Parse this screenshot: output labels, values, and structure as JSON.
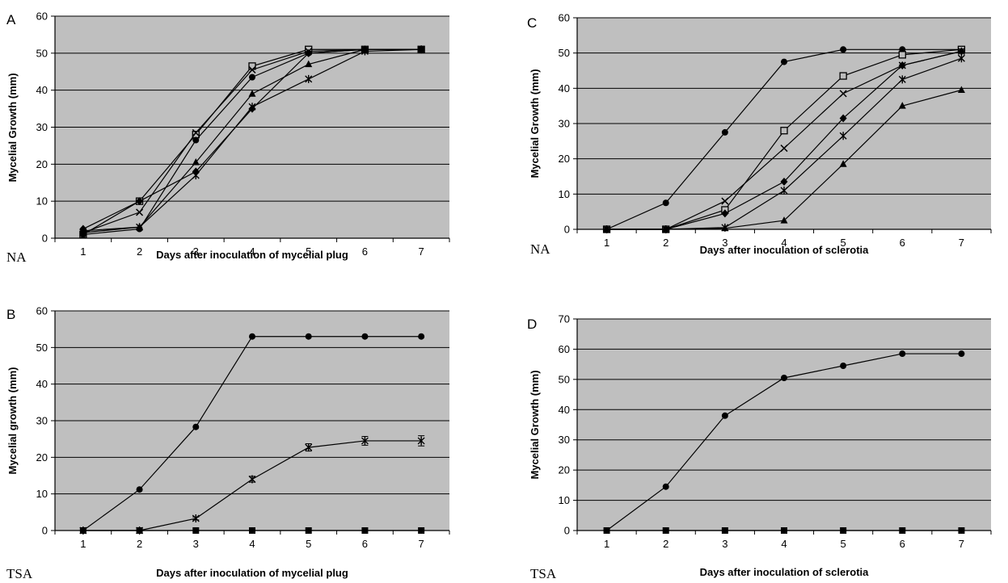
{
  "chart_data": [
    {
      "type": "line",
      "panel_label": "A",
      "medium_label": "NA",
      "xlabel": "Days after inoculation of mycelial plug",
      "ylabel": "Mycelial Growth (mm)",
      "x": [
        1,
        2,
        3,
        4,
        5,
        6,
        7
      ],
      "ylim": [
        0,
        60
      ],
      "ytick_step": 10,
      "grid": true,
      "series": [
        {
          "marker": "square-open",
          "values": [
            1.0,
            10.0,
            28.0,
            46.5,
            51.0,
            51.0,
            51.0
          ]
        },
        {
          "marker": "x",
          "values": [
            1.5,
            7.0,
            28.5,
            45.5,
            50.5,
            51.0,
            51.0
          ]
        },
        {
          "marker": "circle",
          "values": [
            1.0,
            2.5,
            26.5,
            43.5,
            50.0,
            51.0,
            51.0
          ]
        },
        {
          "marker": "triangle",
          "values": [
            2.0,
            3.0,
            20.5,
            39.0,
            47.0,
            51.0,
            51.0
          ]
        },
        {
          "marker": "diamond",
          "values": [
            2.5,
            10.0,
            18.0,
            35.0,
            50.0,
            51.0,
            51.0
          ]
        },
        {
          "marker": "star",
          "values": [
            1.5,
            3.0,
            17.0,
            35.5,
            43.0,
            50.5,
            51.0
          ]
        }
      ]
    },
    {
      "type": "line",
      "panel_label": "B",
      "medium_label": "TSA",
      "xlabel": "Days after inoculation of mycelial plug",
      "ylabel": "Mycelial growth (mm)",
      "x": [
        1,
        2,
        3,
        4,
        5,
        6,
        7
      ],
      "ylim": [
        0,
        60
      ],
      "ytick_step": 10,
      "grid": true,
      "series": [
        {
          "marker": "circle",
          "values": [
            0,
            11.2,
            28.3,
            53.0,
            53.0,
            53.0,
            53.0
          ]
        },
        {
          "marker": "star",
          "values": [
            0,
            0,
            3.3,
            14.0,
            22.7,
            24.5,
            24.5
          ],
          "errors": [
            0,
            0,
            0.4,
            0.8,
            1.0,
            1.2,
            1.4
          ]
        },
        {
          "marker": "square",
          "values": [
            0,
            0,
            0,
            0,
            0,
            0,
            0
          ]
        }
      ]
    },
    {
      "type": "line",
      "panel_label": "C",
      "medium_label": "NA",
      "xlabel": "Days after inoculation of sclerotia",
      "ylabel": "Mycelial Growth (mm)",
      "x": [
        1,
        2,
        3,
        4,
        5,
        6,
        7
      ],
      "ylim": [
        0,
        60
      ],
      "ytick_step": 10,
      "grid": true,
      "series": [
        {
          "marker": "circle",
          "values": [
            0,
            7.5,
            27.5,
            47.5,
            51.0,
            51.0,
            51.0
          ]
        },
        {
          "marker": "square-open",
          "values": [
            0,
            0,
            5.5,
            28.0,
            43.5,
            49.5,
            51.0
          ]
        },
        {
          "marker": "x",
          "values": [
            0,
            0,
            8.0,
            23.0,
            38.5,
            46.5,
            50.5
          ]
        },
        {
          "marker": "diamond",
          "values": [
            0,
            0,
            4.5,
            13.5,
            31.5,
            46.5,
            50.5
          ]
        },
        {
          "marker": "star",
          "values": [
            0,
            0,
            0.5,
            11.0,
            26.5,
            42.5,
            48.5
          ]
        },
        {
          "marker": "triangle",
          "values": [
            0,
            0,
            0.3,
            2.5,
            18.5,
            35.0,
            39.5
          ]
        }
      ]
    },
    {
      "type": "line",
      "panel_label": "D",
      "medium_label": "TSA",
      "xlabel": "Days after inoculation of sclerotia",
      "ylabel": "Mycelial Growth (mm)",
      "x": [
        1,
        2,
        3,
        4,
        5,
        6,
        7
      ],
      "ylim": [
        0,
        70
      ],
      "ytick_step": 10,
      "grid": true,
      "series": [
        {
          "marker": "circle",
          "values": [
            0,
            14.5,
            38.0,
            50.5,
            54.5,
            58.5,
            58.5
          ]
        },
        {
          "marker": "square",
          "values": [
            0,
            0,
            0,
            0,
            0,
            0,
            0
          ]
        }
      ]
    }
  ]
}
